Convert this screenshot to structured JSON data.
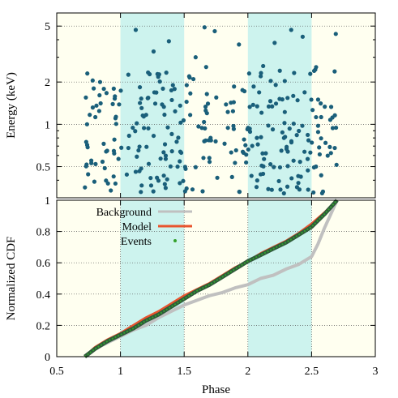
{
  "chart_data": [
    {
      "type": "scatter",
      "ylabel": "Energy (keV)",
      "y_scale": "log",
      "xlim": [
        0.5,
        3
      ],
      "ylim": [
        0.3,
        6.2
      ],
      "y_ticks": [
        0.5,
        1,
        2,
        5
      ],
      "y_tick_labels": [
        "0.5",
        "1",
        "2",
        "5"
      ],
      "grid": "horizontal-dotted",
      "shaded_x_ranges": [
        [
          1.0,
          1.5
        ],
        [
          2.0,
          2.5
        ]
      ],
      "colors": {
        "points": "#1a5f7a",
        "shade": "#cdf3ee",
        "background": "#fffff0"
      },
      "point_count": 320,
      "energy_range": [
        0.32,
        4.9
      ],
      "phase_range": [
        0.72,
        2.7
      ],
      "sample_points": [
        {
          "x": 0.74,
          "y": 2.3
        },
        {
          "x": 0.79,
          "y": 1.8
        },
        {
          "x": 0.84,
          "y": 2.0
        },
        {
          "x": 1.12,
          "y": 4.7
        },
        {
          "x": 1.26,
          "y": 3.3
        },
        {
          "x": 1.38,
          "y": 3.9
        },
        {
          "x": 1.52,
          "y": 1.9
        },
        {
          "x": 1.59,
          "y": 3.0
        },
        {
          "x": 1.66,
          "y": 4.9
        },
        {
          "x": 1.74,
          "y": 4.6
        },
        {
          "x": 1.93,
          "y": 3.7
        },
        {
          "x": 2.01,
          "y": 2.3
        },
        {
          "x": 2.12,
          "y": 2.6
        },
        {
          "x": 2.21,
          "y": 3.8
        },
        {
          "x": 2.34,
          "y": 4.7
        },
        {
          "x": 2.43,
          "y": 4.2
        },
        {
          "x": 2.52,
          "y": 2.4
        },
        {
          "x": 2.69,
          "y": 4.4
        },
        {
          "x": 2.31,
          "y": 0.36
        },
        {
          "x": 1.16,
          "y": 0.33
        }
      ]
    },
    {
      "type": "line",
      "xlabel": "Phase",
      "ylabel": "Normalized CDF",
      "xlim": [
        0.5,
        3
      ],
      "ylim": [
        0,
        1
      ],
      "x_ticks": [
        0.5,
        1,
        1.5,
        2,
        2.5,
        3
      ],
      "x_tick_labels": [
        "0.5",
        "1",
        "1.5",
        "2",
        "2.5",
        "3"
      ],
      "y_ticks": [
        0,
        0.2,
        0.4,
        0.6,
        0.8,
        1
      ],
      "y_tick_labels": [
        "0",
        "0.2",
        "0.4",
        "0.6",
        "0.8",
        "1"
      ],
      "grid": "dotted",
      "legend_position": "top-left",
      "shaded_x_ranges": [
        [
          1.0,
          1.5
        ],
        [
          2.0,
          2.5
        ]
      ],
      "series": [
        {
          "name": "Background",
          "color": "#c0c0c0",
          "x": [
            0.72,
            0.8,
            0.9,
            1.0,
            1.1,
            1.2,
            1.3,
            1.4,
            1.5,
            1.6,
            1.7,
            1.8,
            1.9,
            2.0,
            2.1,
            2.2,
            2.3,
            2.4,
            2.5,
            2.55,
            2.6,
            2.65,
            2.7
          ],
          "values": [
            0.0,
            0.05,
            0.09,
            0.13,
            0.17,
            0.2,
            0.25,
            0.29,
            0.33,
            0.36,
            0.39,
            0.41,
            0.44,
            0.46,
            0.5,
            0.52,
            0.56,
            0.59,
            0.64,
            0.72,
            0.82,
            0.91,
            1.0
          ]
        },
        {
          "name": "Model",
          "color": "#e8542e",
          "x": [
            0.72,
            0.8,
            0.9,
            1.0,
            1.1,
            1.2,
            1.3,
            1.4,
            1.5,
            1.6,
            1.7,
            1.8,
            1.9,
            2.0,
            2.1,
            2.2,
            2.3,
            2.4,
            2.5,
            2.6,
            2.7
          ],
          "values": [
            0.0,
            0.06,
            0.11,
            0.15,
            0.2,
            0.25,
            0.29,
            0.34,
            0.39,
            0.43,
            0.47,
            0.52,
            0.57,
            0.61,
            0.66,
            0.7,
            0.74,
            0.79,
            0.85,
            0.92,
            1.0
          ]
        },
        {
          "name": "Events",
          "color": "#33a02c",
          "x": [
            0.72,
            0.8,
            0.9,
            1.0,
            1.1,
            1.2,
            1.3,
            1.4,
            1.5,
            1.6,
            1.7,
            1.8,
            1.9,
            2.0,
            2.1,
            2.2,
            2.3,
            2.4,
            2.5,
            2.6,
            2.7
          ],
          "values": [
            0.0,
            0.05,
            0.1,
            0.14,
            0.18,
            0.23,
            0.27,
            0.32,
            0.37,
            0.42,
            0.46,
            0.51,
            0.56,
            0.61,
            0.65,
            0.69,
            0.73,
            0.78,
            0.83,
            0.91,
            1.0
          ]
        }
      ]
    }
  ]
}
